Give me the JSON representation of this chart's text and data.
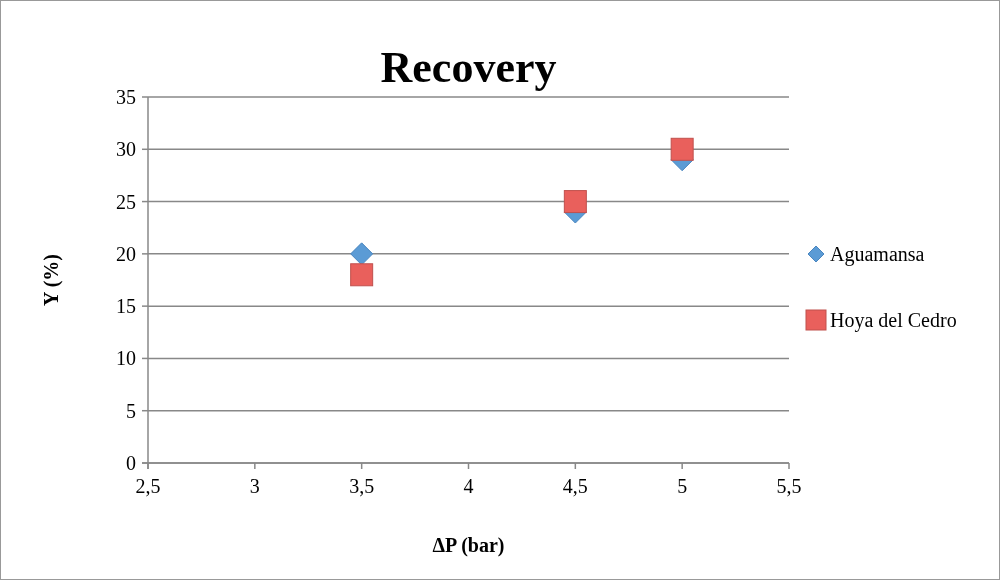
{
  "chart_data": {
    "type": "scatter",
    "title": "Recovery",
    "xlabel": "ΔP (bar)",
    "ylabel": "Y (%)",
    "xlim": [
      2.5,
      5.5
    ],
    "xticks": [
      {
        "value": 2.5,
        "label": "2,5"
      },
      3,
      {
        "value": 3.5,
        "label": "3,5"
      },
      4,
      {
        "value": 4.5,
        "label": "4,5"
      },
      5,
      {
        "value": 5.5,
        "label": "5,5"
      }
    ],
    "ylim": [
      0,
      35
    ],
    "yticks": [
      0,
      5,
      10,
      15,
      20,
      25,
      30,
      35
    ],
    "grid": "y",
    "legend": "right",
    "series": [
      {
        "name": "Aguamansa",
        "color": "#5b9bd5",
        "marker": "diamond",
        "x": [
          3.5,
          4.5,
          5
        ],
        "values": [
          20,
          24,
          29
        ]
      },
      {
        "name": "Hoya del Cedro",
        "color": "#e9605c",
        "marker": "square",
        "x": [
          3.5,
          4.5,
          5
        ],
        "values": [
          18,
          25,
          30
        ]
      }
    ]
  }
}
